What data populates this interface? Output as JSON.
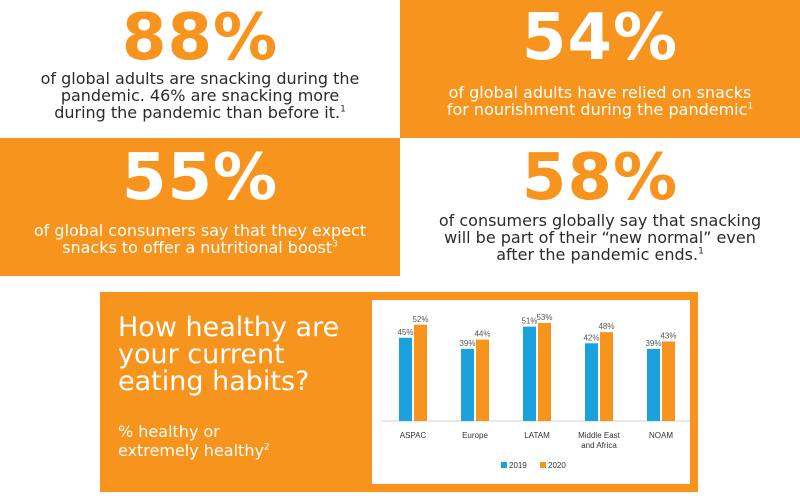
{
  "stats": [
    {
      "value": "88%",
      "text_lines": [
        "of global adults are snacking during the",
        "pandemic. 46% are snacking more",
        "during the pandemic than before it."
      ],
      "sup": "1"
    },
    {
      "value": "54%",
      "text_lines": [
        "of global adults have relied on snacks",
        "for nourishment during the pandemic"
      ],
      "sup": "1"
    },
    {
      "value": "55%",
      "text_lines": [
        "of global consumers say that they expect",
        "snacks to offer a nutritional boost"
      ],
      "sup": "3"
    },
    {
      "value": "58%",
      "text_lines": [
        "of consumers globally say that snacking",
        "will be part of their “new normal” even",
        "after the pandemic ends."
      ],
      "sup": "1"
    }
  ],
  "question": {
    "title_lines": [
      "How healthy are",
      "your current",
      "eating habits?"
    ],
    "subtitle_lines": [
      "% healthy or",
      "extremely healthy"
    ],
    "subtitle_sup": "2"
  },
  "colors": {
    "orange": "#f7941d",
    "blue": "#1ba1de",
    "text_dark": "#2b2b2b",
    "white": "#ffffff"
  },
  "chart_data": {
    "type": "bar",
    "categories": [
      "ASPAC",
      "Europe",
      "LATAM",
      "Middle East and Africa",
      "NOAM"
    ],
    "category_lines": [
      [
        "ASPAC"
      ],
      [
        "Europe"
      ],
      [
        "LATAM"
      ],
      [
        "Middle East",
        "and Africa"
      ],
      [
        "NOAM"
      ]
    ],
    "series": [
      {
        "name": "2019",
        "values": [
          45,
          39,
          51,
          42,
          39
        ],
        "color": "#1ba1de"
      },
      {
        "name": "2020",
        "values": [
          52,
          44,
          53,
          48,
          43
        ],
        "color": "#f7941d"
      }
    ],
    "value_suffix": "%",
    "ylim": [
      0,
      60
    ],
    "legend": "bottom",
    "grid": false
  }
}
